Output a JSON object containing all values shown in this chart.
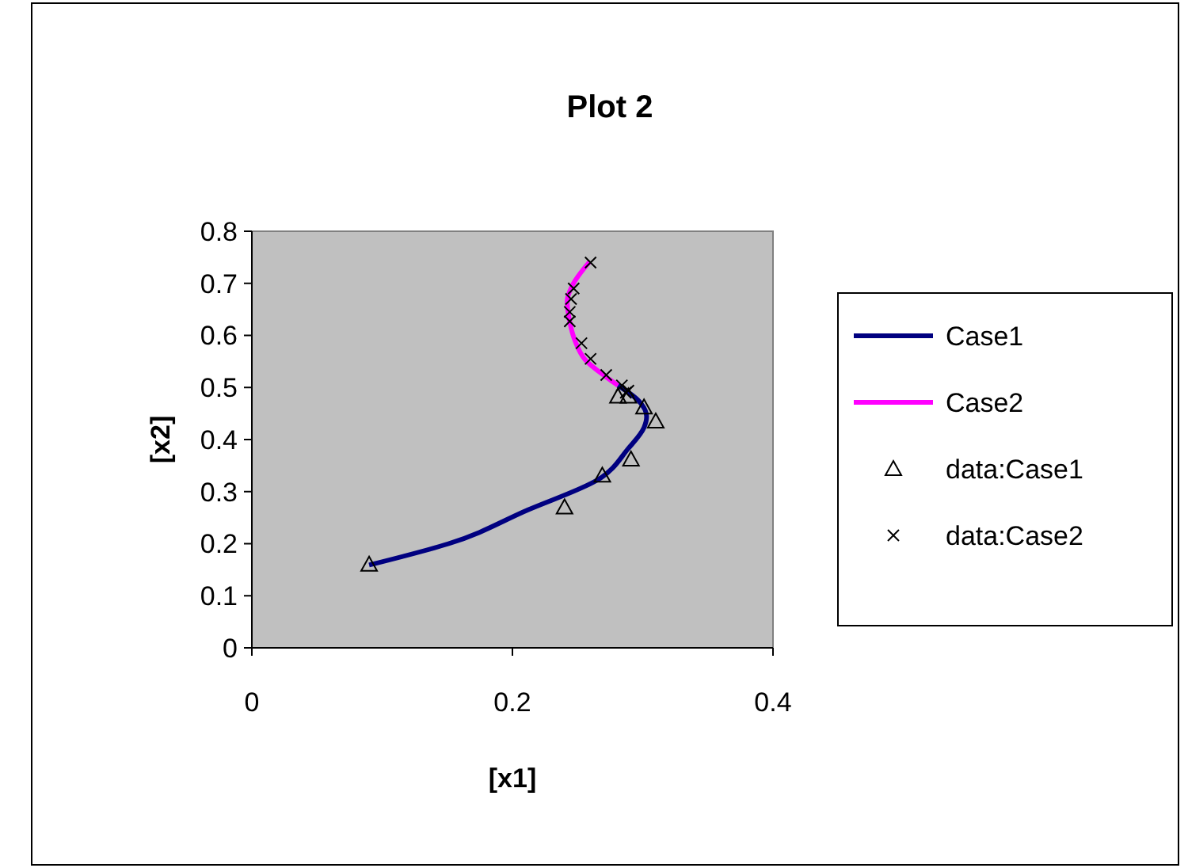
{
  "chart_data": {
    "type": "line",
    "title": "Plot 2",
    "xlabel": "[x1]",
    "ylabel": "[x2]",
    "xlim": [
      0,
      0.4
    ],
    "xticks": [
      0,
      0.2,
      0.4
    ],
    "ylim": [
      0,
      0.8
    ],
    "yticks": [
      0,
      0.1,
      0.2,
      0.3,
      0.4,
      0.5,
      0.6,
      0.7,
      0.8
    ],
    "grid": false,
    "legend": "right",
    "series": [
      {
        "name": "Case1",
        "color": "#000080",
        "marker": "none",
        "x": [
          0.09,
          0.151,
          0.212,
          0.265,
          0.289,
          0.301,
          0.303,
          0.297,
          0.281
        ],
        "values": [
          0.159,
          0.2,
          0.265,
          0.322,
          0.383,
          0.423,
          0.444,
          0.474,
          0.504
        ]
      },
      {
        "name": "Case2",
        "color": "#ff00ff",
        "marker": "none",
        "x": [
          0.281,
          0.272,
          0.256,
          0.248,
          0.244,
          0.242,
          0.246,
          0.259
        ],
        "values": [
          0.504,
          0.52,
          0.553,
          0.59,
          0.626,
          0.666,
          0.696,
          0.741
        ]
      },
      {
        "name": "data:Case1",
        "type": "scatter",
        "color": "#000000",
        "marker": "triangle",
        "x": [
          0.09,
          0.24,
          0.269,
          0.291,
          0.31,
          0.301,
          0.289,
          0.281
        ],
        "values": [
          0.16,
          0.27,
          0.331,
          0.362,
          0.435,
          0.462,
          0.483,
          0.483
        ]
      },
      {
        "name": "data:Case2",
        "type": "scatter",
        "color": "#000000",
        "marker": "cross",
        "x": [
          0.26,
          0.247,
          0.245,
          0.244,
          0.244,
          0.253,
          0.26,
          0.272,
          0.284,
          0.289,
          0.287
        ],
        "values": [
          0.74,
          0.69,
          0.67,
          0.645,
          0.627,
          0.585,
          0.555,
          0.524,
          0.504,
          0.494,
          0.49
        ]
      }
    ]
  }
}
